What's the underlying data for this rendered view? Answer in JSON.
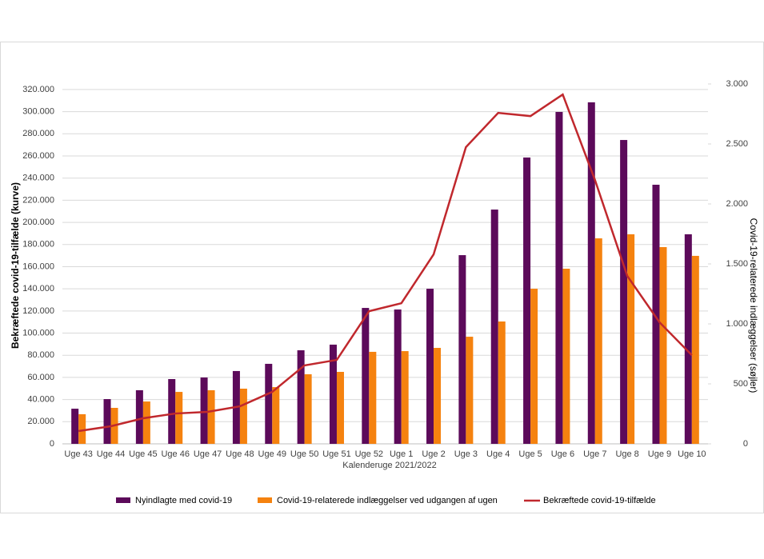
{
  "chart_data": {
    "type": "bar-line",
    "categories": [
      "Uge 43",
      "Uge 44",
      "Uge 45",
      "Uge 46",
      "Uge 47",
      "Uge 48",
      "Uge 49",
      "Uge 50",
      "Uge 51",
      "Uge 52",
      "Uge 1",
      "Uge 2",
      "Uge 3",
      "Uge 4",
      "Uge 5",
      "Uge 6",
      "Uge 7",
      "Uge 8",
      "Uge 9",
      "Uge 10"
    ],
    "xlabel": "Kalenderuge 2021/2022",
    "ylabel": "Bekræftede covid-19-tilfælde (kurve)",
    "y2label": "Covid-19-relaterede indlæggelser (søjler)",
    "series": [
      {
        "name": "Nyindlagte med covid-19",
        "color": "#5c0a5a",
        "type": "bar",
        "axis": "y2",
        "values": [
          293,
          373,
          447,
          540,
          553,
          607,
          667,
          780,
          827,
          1133,
          1120,
          1293,
          1573,
          1953,
          2387,
          2767,
          2847,
          2533,
          2160,
          1747
        ]
      },
      {
        "name": "Covid-19-relaterede indlæggelser ved udgangen af ugen",
        "color": "#f5820f",
        "type": "bar",
        "axis": "y2",
        "values": [
          247,
          300,
          353,
          433,
          447,
          460,
          473,
          580,
          600,
          767,
          773,
          800,
          893,
          1020,
          1293,
          1460,
          1713,
          1747,
          1640,
          1567
        ]
      },
      {
        "name": "Bekræftede covid-19-tilfælde",
        "color": "#c0282d",
        "type": "line",
        "values": [
          11550,
          15900,
          23100,
          27400,
          28900,
          33900,
          46900,
          70800,
          75800,
          119800,
          127000,
          171100,
          267900,
          298900,
          296000,
          315500,
          238200,
          151600,
          109700,
          80100
        ]
      }
    ],
    "ylim": [
      0,
      325000
    ],
    "yticks": [
      0,
      {
        "value": 20000,
        "label": "20.000"
      },
      {
        "value": 40000,
        "label": "40.000"
      },
      {
        "value": 60000,
        "label": "60.000"
      },
      {
        "value": 80000,
        "label": "80.000"
      },
      {
        "value": 100000,
        "label": "100.000"
      },
      {
        "value": 120000,
        "label": "120.000"
      },
      {
        "value": 140000,
        "label": "140.000"
      },
      {
        "value": 160000,
        "label": "160.000"
      },
      {
        "value": 180000,
        "label": "180.000"
      },
      {
        "value": 200000,
        "label": "200.000"
      },
      {
        "value": 220000,
        "label": "220.000"
      },
      {
        "value": 240000,
        "label": "240.000"
      },
      {
        "value": 260000,
        "label": "260.000"
      },
      {
        "value": 280000,
        "label": "280.000"
      },
      {
        "value": 300000,
        "label": "300.000"
      },
      {
        "value": 320000,
        "label": "320.000"
      }
    ],
    "y2lim": [
      0,
      3000
    ],
    "y2ticks": [
      0,
      500,
      {
        "value": 1000,
        "label": "1.000"
      },
      {
        "value": 1500,
        "label": "1.500"
      },
      {
        "value": 2000,
        "label": "2.000"
      },
      {
        "value": 2500,
        "label": "2.500"
      },
      {
        "value": 3000,
        "label": "3.000"
      }
    ],
    "grid": true,
    "legend": "bottom"
  }
}
